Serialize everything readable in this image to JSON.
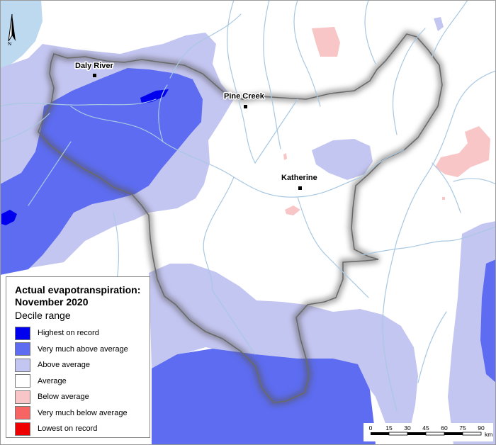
{
  "legend": {
    "title_line1": "Actual evapotranspiration:",
    "title_line2": "November 2020",
    "subtitle": "Decile range",
    "items": [
      {
        "label": "Highest on record",
        "color": "#0000ee"
      },
      {
        "label": "Very much above average",
        "color": "#5d6cf0"
      },
      {
        "label": "Above average",
        "color": "#c4c6f2"
      },
      {
        "label": "Average",
        "color": "#ffffff"
      },
      {
        "label": "Below average",
        "color": "#f8c6c6"
      },
      {
        "label": "Very much below average",
        "color": "#f76464"
      },
      {
        "label": "Lowest on record",
        "color": "#ee0000"
      }
    ]
  },
  "towns": [
    {
      "name": "Daly River"
    },
    {
      "name": "Pine Creek"
    },
    {
      "name": "Katherine"
    }
  ],
  "north_arrow": {
    "label": "N",
    "icon": "north-arrow-icon"
  },
  "scale_bar": {
    "ticks": [
      "0",
      "15",
      "30",
      "45",
      "60",
      "75",
      "90"
    ],
    "unit": "km"
  },
  "colors": {
    "water": "#bcd9f0",
    "river": "#a8c8e2",
    "outside_shade": "#f2f2f2"
  }
}
